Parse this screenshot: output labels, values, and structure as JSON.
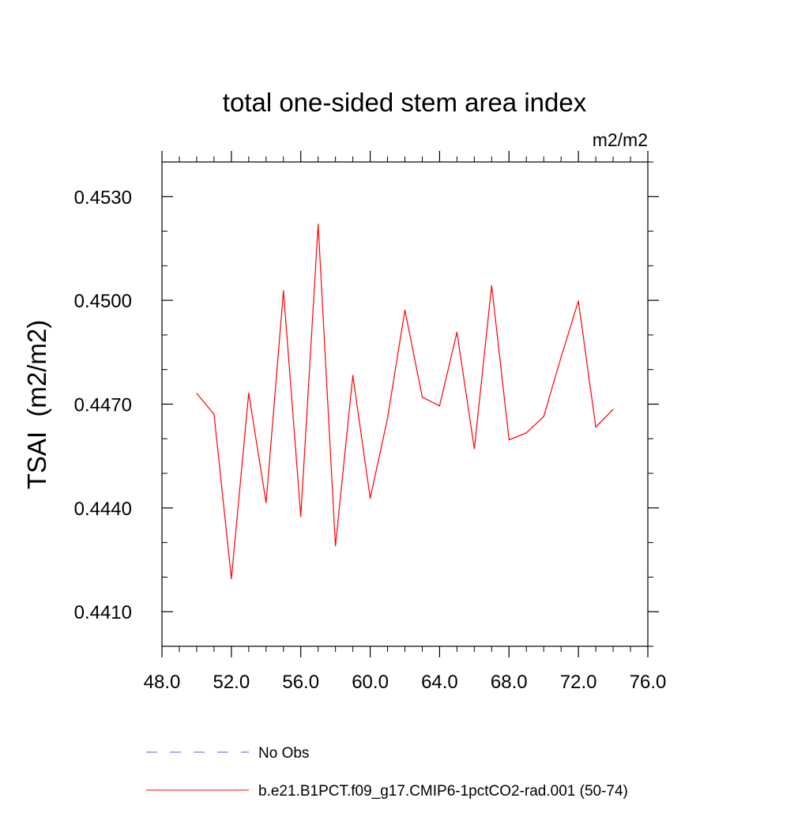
{
  "chart_data": {
    "type": "line",
    "title": "total one-sided stem area index",
    "units_label": "m2/m2",
    "ylabel": "TSAI  (m2/m2)",
    "xlabel": "",
    "xlim": [
      48,
      76
    ],
    "ylim": [
      0.44,
      0.454
    ],
    "x_ticks": [
      48,
      52,
      56,
      60,
      64,
      68,
      72,
      76
    ],
    "x_tick_labels": [
      "48.0",
      "52.0",
      "56.0",
      "60.0",
      "64.0",
      "68.0",
      "72.0",
      "76.0"
    ],
    "x_minor_step": 1,
    "y_ticks": [
      0.441,
      0.444,
      0.447,
      0.45,
      0.453
    ],
    "y_tick_labels": [
      "0.4410",
      "0.4440",
      "0.4470",
      "0.4500",
      "0.4530"
    ],
    "y_minor_step": 0.001,
    "grid": false,
    "legend_position": "bottom",
    "series": [
      {
        "name": "No Obs",
        "color": "#6a5acd",
        "dash": true,
        "x": [],
        "y": []
      },
      {
        "name": "b.e21.B1PCT.f09_g17.CMIP6-1pctCO2-rad.001 (50-74)",
        "color": "#ff0000",
        "dash": false,
        "x": [
          50,
          51,
          52,
          53,
          54,
          55,
          56,
          57,
          58,
          59,
          60,
          61,
          62,
          63,
          64,
          65,
          66,
          67,
          68,
          69,
          70,
          71,
          72,
          73,
          74
        ],
        "y": [
          0.44731,
          0.44671,
          0.44195,
          0.44732,
          0.44415,
          0.45028,
          0.44375,
          0.4522,
          0.4429,
          0.44783,
          0.44428,
          0.44659,
          0.44972,
          0.4472,
          0.44695,
          0.44908,
          0.44571,
          0.45043,
          0.44597,
          0.44617,
          0.44664,
          0.44836,
          0.44998,
          0.44634,
          0.44685
        ]
      }
    ]
  }
}
